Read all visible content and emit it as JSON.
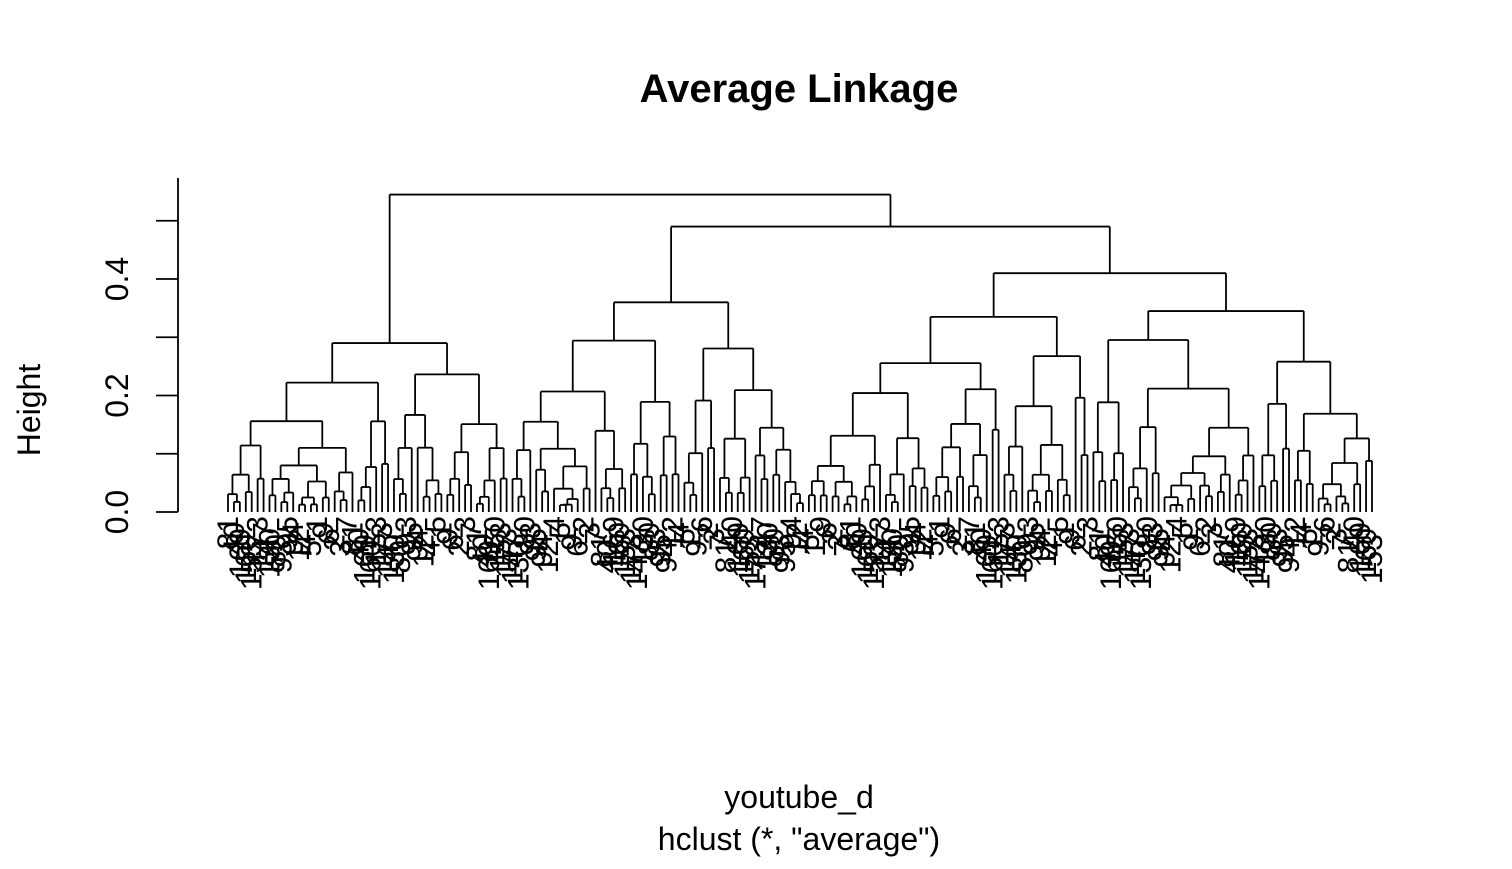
{
  "chart_data": {
    "type": "dendrogram",
    "title": "Average Linkage",
    "xlabel": "youtube_d",
    "sublabel": "hclust (*, \"average\")",
    "ylabel": "Height",
    "ylim": [
      0,
      0.55
    ],
    "yticks": [
      0.0,
      0.2,
      0.4
    ],
    "ytick_labels": [
      "0.0",
      "0.2",
      "0.4"
    ],
    "leaf_count": 194,
    "merge_heights": {
      "root": 0.545,
      "second": 0.49,
      "third": 0.41,
      "left_cluster": 0.29,
      "middle_cluster": 0.36,
      "right_cluster": 0.345
    },
    "visible_leaf_labels": [
      "81",
      "40",
      "169",
      "160",
      "153",
      "173",
      "147",
      "130",
      "80",
      "93",
      "95",
      "94",
      "12",
      "4",
      "5",
      "1",
      "9",
      "6",
      "2",
      "3",
      "7"
    ]
  }
}
